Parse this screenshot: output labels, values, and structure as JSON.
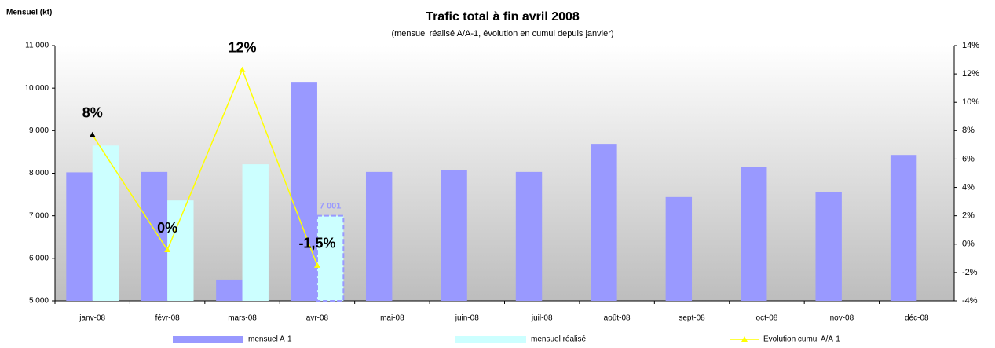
{
  "chart_data": {
    "type": "bar",
    "title": "Trafic total à fin avril 2008",
    "subtitle": "(mensuel réalisé A/A-1, évolution en cumul depuis janvier)",
    "y_label": "Mensuel (kt)",
    "categories": [
      "janv-08",
      "févr-08",
      "mars-08",
      "avr-08",
      "mai-08",
      "juin-08",
      "juil-08",
      "août-08",
      "sept-08",
      "oct-08",
      "nov-08",
      "déc-08"
    ],
    "ylim": [
      5000,
      11000
    ],
    "yticks": [
      {
        "value": 5000,
        "label": "5 000"
      },
      {
        "value": 6000,
        "label": "6 000"
      },
      {
        "value": 7000,
        "label": "7 000"
      },
      {
        "value": 8000,
        "label": "8 000"
      },
      {
        "value": 9000,
        "label": "9 000"
      },
      {
        "value": 10000,
        "label": "10 000"
      },
      {
        "value": 11000,
        "label": "11 000"
      }
    ],
    "y2lim": [
      -4,
      14
    ],
    "y2ticks": [
      {
        "value": -4,
        "label": "-4%"
      },
      {
        "value": -2,
        "label": "-2%"
      },
      {
        "value": 0,
        "label": "0%"
      },
      {
        "value": 2,
        "label": "2%"
      },
      {
        "value": 4,
        "label": "4%"
      },
      {
        "value": 6,
        "label": "6%"
      },
      {
        "value": 8,
        "label": "8%"
      },
      {
        "value": 10,
        "label": "10%"
      },
      {
        "value": 12,
        "label": "12%"
      },
      {
        "value": 14,
        "label": "14%"
      }
    ],
    "series": [
      {
        "name": "mensuel A-1",
        "color": "#9999ff",
        "type": "bar",
        "values": [
          8020,
          8030,
          5500,
          10130,
          8030,
          8080,
          8030,
          8690,
          7440,
          8140,
          7550,
          8430
        ]
      },
      {
        "name": "mensuel réalisé",
        "color": "#ccffff",
        "type": "bar",
        "values": [
          8650,
          7360,
          8210,
          7001,
          null,
          null,
          null,
          null,
          null,
          null,
          null,
          null
        ],
        "value_labels": [
          null,
          null,
          null,
          "7 001",
          null,
          null,
          null,
          null,
          null,
          null,
          null,
          null
        ]
      },
      {
        "name": "Evolution cumul A/A-1",
        "color": "#ffff00",
        "type": "line",
        "axis": "y2",
        "values": [
          7.7,
          -0.4,
          12.3,
          -1.5,
          null,
          null,
          null,
          null,
          null,
          null,
          null,
          null
        ],
        "value_labels": [
          "8%",
          "0%",
          "12%",
          "-1,5%",
          null,
          null,
          null,
          null,
          null,
          null,
          null,
          null
        ]
      }
    ]
  }
}
